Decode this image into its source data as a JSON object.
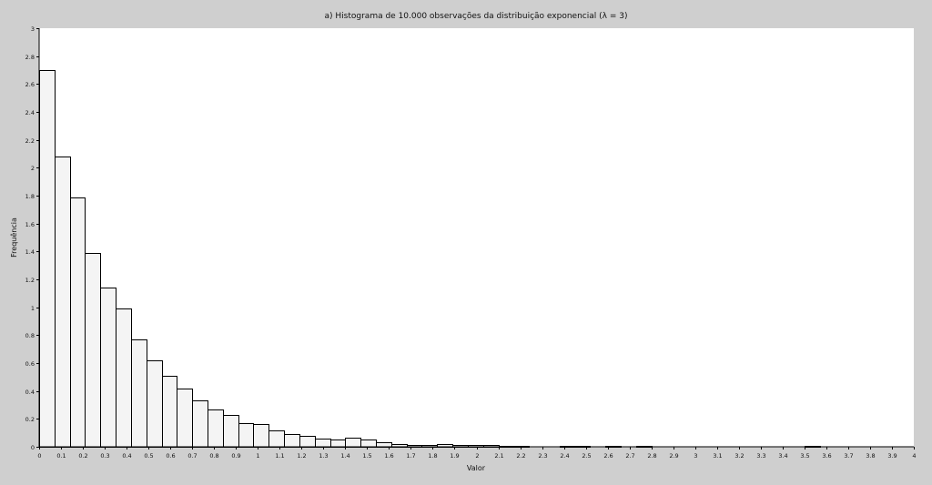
{
  "chart_data": {
    "type": "bar",
    "title": "a) Histograma de 10.000 observações da distribuição exponencial (λ = 3)",
    "xlabel": "Valor",
    "ylabel": "Frequência",
    "xlim": [
      0,
      4
    ],
    "ylim": [
      0,
      3
    ],
    "grid": false,
    "bin_width": 0.07,
    "x_ticks": [
      "0",
      "0.1",
      "0.2",
      "0.3",
      "0.4",
      "0.5",
      "0.6",
      "0.7",
      "0.8",
      "0.9",
      "1",
      "1.1",
      "1.2",
      "1.3",
      "1.4",
      "1.5",
      "1.6",
      "1.7",
      "1.8",
      "1.9",
      "2",
      "2.1",
      "2.2",
      "2.3",
      "2.4",
      "2.5",
      "2.6",
      "2.7",
      "2.8",
      "2.9",
      "3",
      "3.1",
      "3.2",
      "3.3",
      "3.4",
      "3.5",
      "3.6",
      "3.7",
      "3.8",
      "3.9",
      "4"
    ],
    "y_ticks": [
      "0",
      "0.2",
      "0.4",
      "0.6",
      "0.8",
      "1",
      "1.2",
      "1.4",
      "1.6",
      "1.8",
      "2",
      "2.2",
      "2.4",
      "2.6",
      "2.8",
      "3"
    ],
    "values": [
      2.7,
      2.08,
      1.79,
      1.39,
      1.14,
      0.99,
      0.77,
      0.62,
      0.51,
      0.42,
      0.33,
      0.27,
      0.23,
      0.17,
      0.16,
      0.12,
      0.09,
      0.08,
      0.06,
      0.05,
      0.065,
      0.05,
      0.035,
      0.02,
      0.01,
      0.012,
      0.018,
      0.01,
      0.01,
      0.01,
      0.004,
      0.004,
      0.003,
      0,
      0.004,
      0.004,
      0,
      0.004,
      0,
      0.004,
      0,
      0,
      0,
      0,
      0,
      0,
      0,
      0,
      0,
      0,
      0.004
    ]
  }
}
